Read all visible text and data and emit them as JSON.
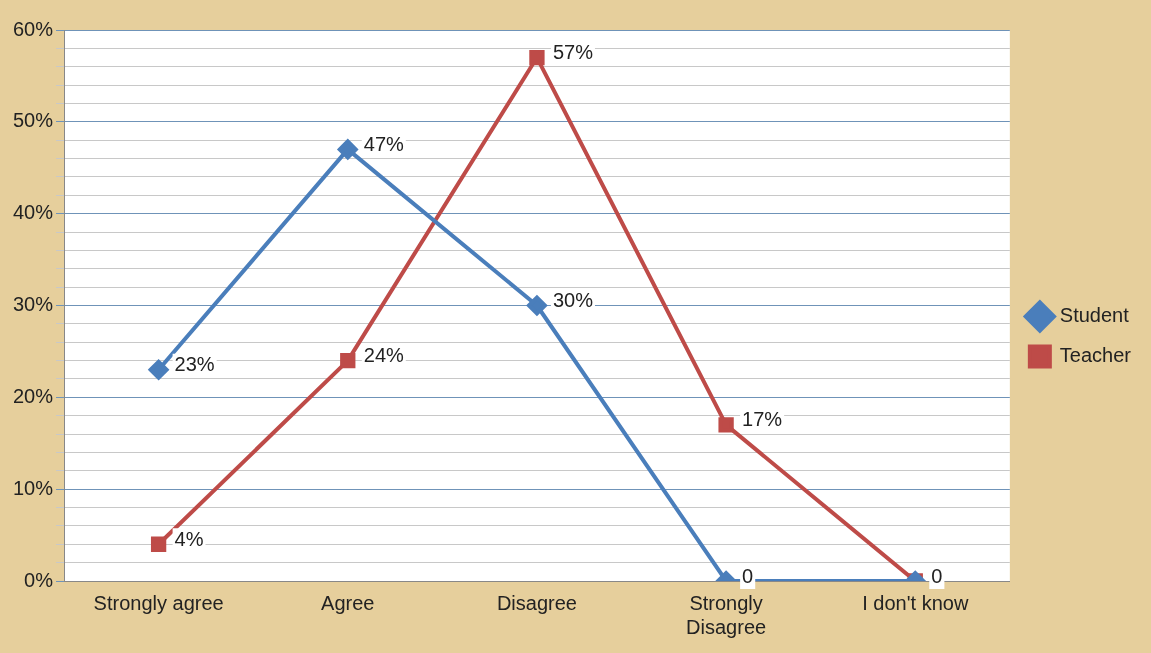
{
  "chart_data": {
    "type": "line",
    "categories": [
      "Strongly agree",
      "Agree",
      "Disagree",
      "Strongly Disagree",
      "I don't know"
    ],
    "series": [
      {
        "name": "Student",
        "color": "#4a7ebb",
        "marker": "diamond",
        "values": [
          23,
          47,
          30,
          0,
          0
        ],
        "value_labels": [
          "23%",
          "47%",
          "30%",
          "0",
          null
        ]
      },
      {
        "name": "Teacher",
        "color": "#be4b48",
        "marker": "square",
        "values": [
          4,
          24,
          57,
          17,
          0
        ],
        "value_labels": [
          "4%",
          "24%",
          "57%",
          "17%",
          "0"
        ]
      }
    ],
    "ylim": [
      0,
      60
    ],
    "yticks": [
      {
        "value": 0,
        "label": "0%"
      },
      {
        "value": 2,
        "label": null
      },
      {
        "value": 4,
        "label": null
      },
      {
        "value": 6,
        "label": null
      },
      {
        "value": 8,
        "label": null
      },
      {
        "value": 10,
        "label": "10%"
      },
      {
        "value": 12,
        "label": null
      },
      {
        "value": 14,
        "label": null
      },
      {
        "value": 16,
        "label": null
      },
      {
        "value": 18,
        "label": null
      },
      {
        "value": 20,
        "label": "20%"
      },
      {
        "value": 22,
        "label": null
      },
      {
        "value": 24,
        "label": null
      },
      {
        "value": 26,
        "label": null
      },
      {
        "value": 28,
        "label": null
      },
      {
        "value": 30,
        "label": "30%"
      },
      {
        "value": 32,
        "label": null
      },
      {
        "value": 34,
        "label": null
      },
      {
        "value": 36,
        "label": null
      },
      {
        "value": 38,
        "label": null
      },
      {
        "value": 40,
        "label": "40%"
      },
      {
        "value": 42,
        "label": null
      },
      {
        "value": 44,
        "label": null
      },
      {
        "value": 46,
        "label": null
      },
      {
        "value": 48,
        "label": null
      },
      {
        "value": 50,
        "label": "50%"
      },
      {
        "value": 52,
        "label": null
      },
      {
        "value": 54,
        "label": null
      },
      {
        "value": 56,
        "label": null
      },
      {
        "value": 58,
        "label": null
      },
      {
        "value": 60,
        "label": "60%"
      }
    ],
    "grid": "y",
    "legend": "right",
    "line_style": "solid"
  }
}
